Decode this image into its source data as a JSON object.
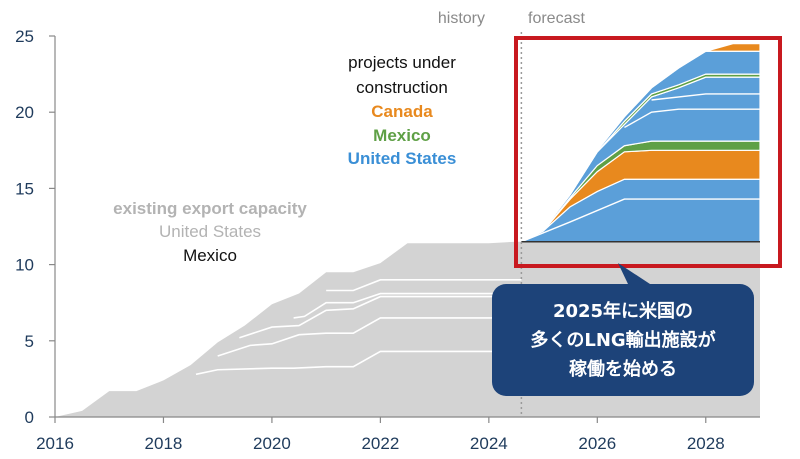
{
  "chart_data": {
    "type": "area",
    "title": "",
    "xlabel": "",
    "ylabel": "",
    "xlim": [
      2016,
      2029
    ],
    "ylim": [
      0,
      25
    ],
    "x_ticks": [
      "2016",
      "2018",
      "2020",
      "2022",
      "2024",
      "2026",
      "2028"
    ],
    "y_ticks": [
      "0",
      "5",
      "10",
      "15",
      "20",
      "25"
    ],
    "grid": "none",
    "history_forecast_boundary": 2024.6,
    "labels": {
      "history": "history",
      "forecast": "forecast",
      "projects_header": "projects under construction",
      "projects_line1": "projects under",
      "projects_line2": "construction",
      "canada": "Canada",
      "mexico_uc": "Mexico",
      "united_states_uc": "United States",
      "existing": "existing export capacity",
      "existing_us": "United States",
      "existing_mexico": "Mexico"
    },
    "colors": {
      "existing": "#d3d3d3",
      "us_construction": "#5b9fd9",
      "mexico_construction": "#5fa046",
      "canada_construction": "#e8891e",
      "highlight_box": "#c8191f",
      "callout": "#1d4379"
    },
    "existing_capacity_total": {
      "x": [
        2016.0,
        2016.5,
        2017.0,
        2017.5,
        2018.0,
        2018.5,
        2019.0,
        2019.5,
        2020.0,
        2020.5,
        2021.0,
        2021.5,
        2022.0,
        2022.5,
        2023.0,
        2023.5,
        2024.0,
        2024.5,
        2029.0
      ],
      "y": [
        0.0,
        0.4,
        1.7,
        1.7,
        2.4,
        3.4,
        4.9,
        6.0,
        7.4,
        8.1,
        9.5,
        9.5,
        10.1,
        11.4,
        11.4,
        11.4,
        11.4,
        11.5,
        11.5
      ]
    },
    "existing_internal_lines": [
      {
        "x": [
          2018.6,
          2019.0,
          2020.0,
          2020.4,
          2021.0,
          2021.5,
          2022.0,
          2024.6
        ],
        "y": [
          2.8,
          3.1,
          3.2,
          3.2,
          3.3,
          3.3,
          4.3,
          4.3
        ]
      },
      {
        "x": [
          2019.0,
          2019.6,
          2020.0,
          2020.5,
          2021.0,
          2021.5,
          2022.0,
          2024.6
        ],
        "y": [
          4.0,
          4.7,
          4.8,
          5.4,
          5.5,
          5.5,
          6.5,
          6.5
        ]
      },
      {
        "x": [
          2019.4,
          2020.0,
          2020.5,
          2021.0,
          2021.5,
          2022.0,
          2024.6
        ],
        "y": [
          5.2,
          5.9,
          6.0,
          7.0,
          7.1,
          7.9,
          7.9
        ]
      },
      {
        "x": [
          2020.4,
          2020.6,
          2021.0,
          2021.5,
          2022.0,
          2024.6
        ],
        "y": [
          6.5,
          6.6,
          7.5,
          7.5,
          8.1,
          8.1
        ]
      },
      {
        "x": [
          2021.0,
          2021.5,
          2022.0,
          2024.6
        ],
        "y": [
          8.3,
          8.3,
          9.0,
          9.0
        ]
      }
    ],
    "series": [
      {
        "name": "United States",
        "x": [
          2024.6,
          2025.0,
          2025.5,
          2026.0,
          2026.5,
          2027.0,
          2027.5,
          2028.0,
          2028.5,
          2029.0
        ],
        "y": [
          11.5,
          12.2,
          13.8,
          14.8,
          15.6,
          15.6,
          15.6,
          15.6,
          15.6,
          15.6
        ]
      },
      {
        "name": "Canada",
        "x": [
          2024.6,
          2025.0,
          2025.5,
          2026.0,
          2026.5,
          2027.0,
          2027.5,
          2028.0,
          2028.5,
          2029.0
        ],
        "y": [
          11.5,
          12.2,
          14.3,
          16.1,
          17.4,
          17.5,
          17.5,
          17.5,
          17.5,
          17.5
        ]
      },
      {
        "name": "Mexico",
        "x": [
          2024.6,
          2025.0,
          2025.5,
          2026.0,
          2026.5,
          2027.0,
          2027.5,
          2028.0,
          2028.5,
          2029.0
        ],
        "y": [
          11.5,
          12.2,
          14.4,
          16.5,
          17.8,
          18.1,
          18.1,
          18.1,
          18.1,
          18.1
        ]
      },
      {
        "name": "United States",
        "x": [
          2024.6,
          2025.0,
          2025.5,
          2026.0,
          2026.5,
          2027.0,
          2027.5,
          2028.0,
          2028.5,
          2029.0
        ],
        "y": [
          11.5,
          12.3,
          14.6,
          17.4,
          19.2,
          21.0,
          21.6,
          22.3,
          22.3,
          22.3
        ]
      },
      {
        "name": "Mexico",
        "x": [
          2024.6,
          2025.0,
          2025.5,
          2026.0,
          2026.5,
          2027.0,
          2027.5,
          2028.0,
          2028.5,
          2029.0
        ],
        "y": [
          11.5,
          12.3,
          14.6,
          17.4,
          19.4,
          21.2,
          21.8,
          22.5,
          22.5,
          22.5
        ]
      },
      {
        "name": "United States",
        "x": [
          2024.6,
          2025.0,
          2025.5,
          2026.0,
          2026.5,
          2027.0,
          2027.5,
          2028.0,
          2028.5,
          2029.0
        ],
        "y": [
          11.5,
          12.3,
          14.6,
          17.5,
          19.7,
          21.6,
          22.9,
          24.0,
          24.0,
          24.0
        ]
      },
      {
        "name": "Canada",
        "x": [
          2024.6,
          2025.0,
          2025.5,
          2026.0,
          2026.5,
          2027.0,
          2027.5,
          2028.0,
          2028.5,
          2029.0
        ],
        "y": [
          11.5,
          12.3,
          14.6,
          17.5,
          19.7,
          21.6,
          22.9,
          24.0,
          24.5,
          24.5
        ]
      }
    ],
    "us_construction_internal_lines": [
      {
        "x": [
          2024.6,
          2025.5,
          2026.5,
          2029.0
        ],
        "y": [
          11.5,
          12.8,
          14.3,
          14.3
        ]
      },
      {
        "x": [
          2026.5,
          2027.0,
          2027.5,
          2028.0,
          2029.0
        ],
        "y": [
          19.0,
          20.0,
          20.2,
          20.2,
          20.2
        ]
      },
      {
        "x": [
          2027.0,
          2028.0,
          2029.0
        ],
        "y": [
          20.8,
          21.2,
          21.2
        ]
      }
    ]
  },
  "callout": {
    "line1": "2025年に米国の",
    "line2": "多くのLNG輸出施設が",
    "line3": "稼働を始める"
  }
}
